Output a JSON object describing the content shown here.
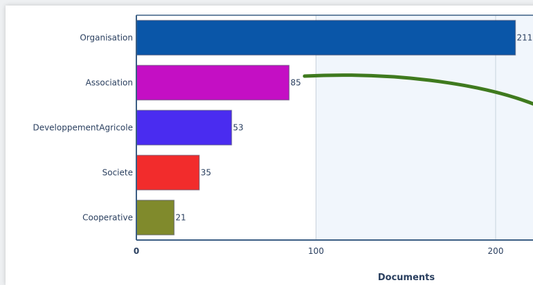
{
  "chart_data": {
    "type": "bar",
    "orientation": "horizontal",
    "categories": [
      "Organisation",
      "Association",
      "DeveloppementAgricole",
      "Societe",
      "Cooperative"
    ],
    "values": [
      211,
      85,
      53,
      35,
      21
    ],
    "colors": [
      "#0a56a8",
      "#c40fc4",
      "#4a2cf0",
      "#f22c2c",
      "#808a2c"
    ],
    "xlabel": "Documents",
    "ylabel": "",
    "xticks": [
      0,
      100,
      200
    ],
    "xlim": [
      0,
      220
    ],
    "grid": true,
    "background_band_color": "#f1f6fc"
  },
  "annotation": {
    "type": "green-curved-arrow",
    "color": "#3f7a1e"
  }
}
